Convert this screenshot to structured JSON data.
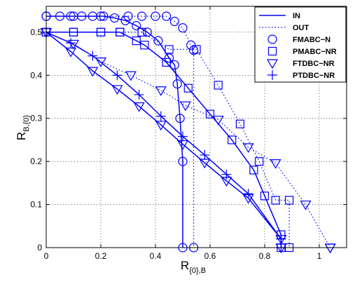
{
  "chart_data": {
    "type": "line",
    "xlabel_main": "R",
    "xlabel_sub": "{0},B",
    "ylabel_main": "R",
    "ylabel_sub": "B,{0}",
    "xlim": [
      0,
      1.1
    ],
    "ylim": [
      0,
      0.56
    ],
    "xticks": [
      0,
      0.2,
      0.4,
      0.6,
      0.8,
      1
    ],
    "xtick_labels": [
      "0",
      "0.2",
      "0.4",
      "0.6",
      "0.8",
      "1"
    ],
    "yticks": [
      0,
      0.1,
      0.2,
      0.3,
      0.4,
      0.5
    ],
    "ytick_labels": [
      "0",
      "0.1",
      "0.2",
      "0.3",
      "0.4",
      "0.5"
    ],
    "grid": true,
    "legend_position": "top-right",
    "color": "#0000ff",
    "legend": [
      {
        "label": "IN",
        "style": "solid",
        "marker": "none"
      },
      {
        "label": "OUT",
        "style": "dotted",
        "marker": "none"
      },
      {
        "label": "FMABC−N",
        "style": "none",
        "marker": "circle"
      },
      {
        "label": "PMABC−NR",
        "style": "none",
        "marker": "square"
      },
      {
        "label": "FTDBC−NR",
        "style": "none",
        "marker": "triangle-down"
      },
      {
        "label": "PTDBC−NR",
        "style": "none",
        "marker": "plus"
      }
    ],
    "series": [
      {
        "group": "FMABC−N",
        "bound": "IN",
        "marker": "circle",
        "x": [
          0,
          0.05,
          0.09,
          0.13,
          0.17,
          0.21,
          0.25,
          0.29,
          0.33,
          0.37,
          0.41,
          0.45,
          0.47,
          0.48,
          0.49,
          0.5,
          0.5
        ],
        "y": [
          0.537,
          0.537,
          0.537,
          0.537,
          0.537,
          0.537,
          0.533,
          0.527,
          0.515,
          0.5,
          0.48,
          0.44,
          0.424,
          0.38,
          0.3,
          0.2,
          0
        ]
      },
      {
        "group": "FMABC−N",
        "bound": "OUT",
        "marker": "circle",
        "x": [
          0,
          0.1,
          0.2,
          0.3,
          0.35,
          0.4,
          0.44,
          0.47,
          0.5,
          0.53,
          0.54,
          0.54
        ],
        "y": [
          0.537,
          0.537,
          0.537,
          0.537,
          0.537,
          0.537,
          0.537,
          0.525,
          0.51,
          0.47,
          0.458,
          0
        ]
      },
      {
        "group": "PMABC−NR",
        "bound": "IN",
        "marker": "square",
        "x": [
          0,
          0.1,
          0.2,
          0.27,
          0.33,
          0.36,
          0.44,
          0.52,
          0.6,
          0.68,
          0.76,
          0.8,
          0.86,
          0.86
        ],
        "y": [
          0.5,
          0.5,
          0.5,
          0.5,
          0.48,
          0.47,
          0.43,
          0.37,
          0.31,
          0.25,
          0.18,
          0.12,
          0.03,
          0
        ]
      },
      {
        "group": "PMABC−NR",
        "bound": "OUT",
        "marker": "square",
        "x": [
          0,
          0.1,
          0.2,
          0.27,
          0.35,
          0.45,
          0.55,
          0.63,
          0.71,
          0.78,
          0.84,
          0.89,
          0.89
        ],
        "y": [
          0.5,
          0.5,
          0.5,
          0.5,
          0.5,
          0.46,
          0.46,
          0.377,
          0.287,
          0.2,
          0.11,
          0.11,
          0
        ]
      },
      {
        "group": "FTDBC−NR",
        "bound": "IN",
        "marker": "triangle-down",
        "x": [
          0,
          0.09,
          0.17,
          0.26,
          0.34,
          0.42,
          0.5,
          0.58,
          0.66,
          0.74,
          0.86,
          0.86
        ],
        "y": [
          0.5,
          0.455,
          0.41,
          0.368,
          0.328,
          0.285,
          0.24,
          0.197,
          0.155,
          0.115,
          0.02,
          0
        ]
      },
      {
        "group": "FTDBC−NR",
        "bound": "OUT",
        "marker": "triangle-down",
        "x": [
          0,
          0.1,
          0.2,
          0.31,
          0.42,
          0.51,
          0.63,
          0.74,
          0.84,
          0.95,
          1.04,
          1.04
        ],
        "y": [
          0.5,
          0.473,
          0.432,
          0.4,
          0.365,
          0.33,
          0.297,
          0.233,
          0.196,
          0.1,
          0,
          0
        ]
      },
      {
        "group": "PTDBC−NR",
        "bound": "IN",
        "marker": "plus",
        "x": [
          0,
          0.09,
          0.17,
          0.26,
          0.34,
          0.42,
          0.5,
          0.58,
          0.66,
          0.74,
          0.86,
          0.86
        ],
        "y": [
          0.5,
          0.475,
          0.445,
          0.4,
          0.355,
          0.305,
          0.258,
          0.215,
          0.17,
          0.125,
          0.02,
          0
        ]
      }
    ]
  }
}
